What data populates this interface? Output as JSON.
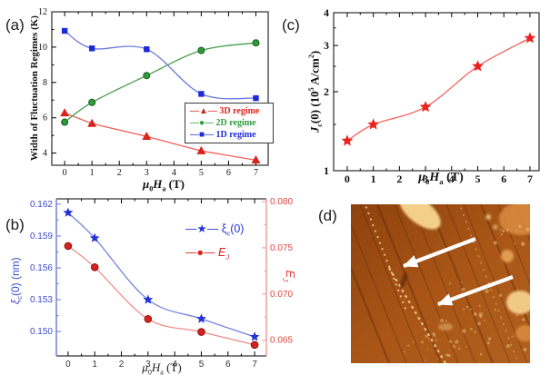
{
  "labels": {
    "panel_a_tag": "(a)",
    "panel_b_tag": "(b)",
    "panel_c_tag": "(c)",
    "panel_d_tag": "(d)",
    "field": {
      "mu": "μ",
      "sub": "0",
      "sym": "H",
      "sub2": "a",
      "tail": " (T)"
    },
    "a_ylabel": "Width of Fluctuation Regimes (K)",
    "c_ylabel": {
      "sym": "J",
      "sub": "c",
      "tail": "(0)  (10",
      "sup": "5",
      "tail2": " A/cm",
      "sup2": "2",
      "tail3": ")"
    },
    "b_left_ylabel": {
      "sym": "ξ",
      "sub": "c",
      "tail": "(0) (nm)"
    },
    "b_right_ylabel": {
      "sym": "E",
      "sub": "J"
    },
    "b_legend_xi": {
      "glyph": "—★—",
      "sym": "ξ",
      "sub": "c",
      "tail": "(0)"
    },
    "b_legend_ej": {
      "glyph": "—●—",
      "sym": "E",
      "sub": "J"
    }
  },
  "afm": {
    "base_dark": "#8f3c0a",
    "base_mid": "#b25616",
    "base_light": "#bc6420",
    "highlight": "#f4cf8c",
    "patch": "#d98c3e",
    "arrow_color": "#ffffff",
    "arrow_count": 2,
    "description": "AFM topography image with stepped terraces, bright islands and two white arrows marking linear defects"
  },
  "chart_data": [
    {
      "id": "a",
      "type": "line",
      "title": "",
      "xlabel": "μ0Ha (T)",
      "ylabel": "Width of Fluctuation Regimes (K)",
      "x": [
        0,
        1,
        3,
        5,
        7
      ],
      "xticks": [
        0,
        1,
        2,
        3,
        4,
        5,
        6,
        7
      ],
      "yticks": [
        4,
        6,
        8,
        10,
        12
      ],
      "yticks_minor": [
        5,
        7,
        9,
        11
      ],
      "xlim": [
        -0.47,
        7.45
      ],
      "ylim": [
        3.31,
        12
      ],
      "legend_position": "inside lower right",
      "series": [
        {
          "name": "3D regime",
          "glyph": "▲",
          "marker": "triangle",
          "smooth": false,
          "color": "#d8231d",
          "line_color": "#ee6058",
          "values": [
            6.27,
            5.67,
            4.94,
            4.12,
            3.6
          ]
        },
        {
          "name": "2D regime",
          "glyph": "●",
          "marker": "circle",
          "smooth": true,
          "color": "#2f9b3c",
          "edge_color": "#135c19",
          "line_color": "#3f9e4b",
          "values": [
            5.75,
            6.87,
            8.39,
            9.81,
            10.24
          ]
        },
        {
          "name": "1D regime",
          "glyph": "■",
          "marker": "square",
          "smooth": true,
          "color": "#1c2bd6",
          "line_color": "#6b79dd",
          "values": [
            10.92,
            9.93,
            9.88,
            7.35,
            7.11
          ]
        }
      ]
    },
    {
      "id": "c",
      "type": "line",
      "yscale": "log",
      "xlabel": "μ0Ha (T)",
      "ylabel": "Jc(0) (10^5 A/cm^2)",
      "x": [
        0,
        1,
        3,
        5,
        7
      ],
      "xticks": [
        0,
        1,
        2,
        3,
        4,
        5,
        6,
        7
      ],
      "yticks": [
        1,
        2,
        3,
        4
      ],
      "yticks_minor": [
        1.5,
        2.5,
        3.5
      ],
      "xlim": [
        -0.52,
        7.35
      ],
      "ylim": [
        1,
        4
      ],
      "series": [
        {
          "name": "Jc(0)",
          "glyph": "★",
          "marker": "star",
          "smooth": true,
          "color": "#e8221c",
          "line_color": "#f2605a",
          "values": [
            1.3,
            1.5,
            1.75,
            2.5,
            3.2
          ]
        }
      ]
    },
    {
      "id": "b",
      "type": "line-dual",
      "xlabel": "μ0Ha (T)",
      "x": [
        0,
        1,
        3,
        5,
        7
      ],
      "xticks": [
        0,
        1,
        2,
        3,
        4,
        5,
        6,
        7
      ],
      "xlim": [
        -0.44,
        7.44
      ],
      "left_axis": {
        "label": "ξc(0) (nm)",
        "ticks": [
          0.15,
          0.153,
          0.156,
          0.159,
          0.162
        ],
        "ticks_minor": [
          0.1515,
          0.1545,
          0.1575,
          0.1605
        ],
        "lim": [
          0.1477,
          0.1625
        ],
        "color": "#3a4ad4",
        "spine_color": "#6a74dc"
      },
      "right_axis": {
        "label": "EJ",
        "ticks": [
          0.065,
          0.07,
          0.075,
          0.08
        ],
        "ticks_minor": [
          0.0675,
          0.0725,
          0.0775
        ],
        "lim": [
          0.0633,
          0.0803
        ],
        "color": "#e0453f",
        "spine_color": "#ec9a96"
      },
      "legend_position": "inside upper right",
      "series": [
        {
          "name": "ξc(0)",
          "axis": "left",
          "glyph": "★",
          "marker": "star",
          "smooth": true,
          "color": "#2434d4",
          "line_color": "#7583dd",
          "values": [
            0.1612,
            0.1588,
            0.153,
            0.1512,
            0.1495
          ]
        },
        {
          "name": "EJ",
          "axis": "right",
          "glyph": "●",
          "marker": "circle",
          "smooth": true,
          "color": "#d6231f",
          "edge_color": "#8e100c",
          "line_color": "#ef8d88",
          "values": [
            0.0752,
            0.0729,
            0.0673,
            0.0659,
            0.0645
          ]
        }
      ]
    }
  ]
}
